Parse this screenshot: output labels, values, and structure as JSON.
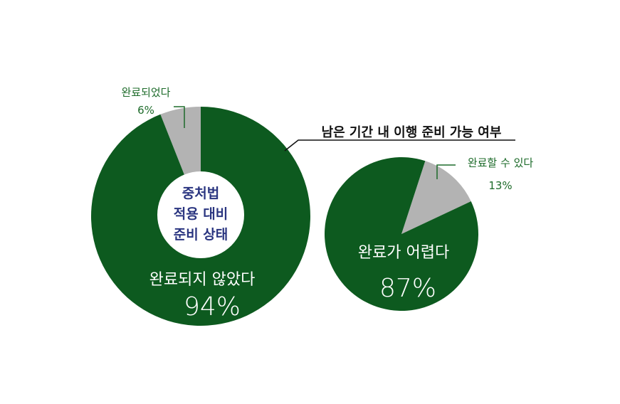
{
  "chart_data": [
    {
      "type": "pie",
      "center_label": [
        "중처법",
        "적용 대비",
        "준비 상태"
      ],
      "slices": [
        {
          "label": "완료되었다",
          "value": 6,
          "display": "6%",
          "color": "#b3b3b3"
        },
        {
          "label": "완료되지 않았다",
          "value": 94,
          "display": "94%",
          "color": "#0d5a1f"
        }
      ]
    },
    {
      "type": "pie",
      "title": "남은 기간 내 이행 준비 가능 여부",
      "slices": [
        {
          "label": "완료할 수 있다",
          "value": 13,
          "display": "13%",
          "color": "#b3b3b3"
        },
        {
          "label": "완료가 어렵다",
          "value": 87,
          "display": "87%",
          "color": "#0d5a1f"
        }
      ]
    }
  ],
  "colors": {
    "dark_green": "#0d5a1f",
    "gray": "#b3b3b3",
    "label_green": "#1d6b2a",
    "center_text": "#2a3580"
  }
}
